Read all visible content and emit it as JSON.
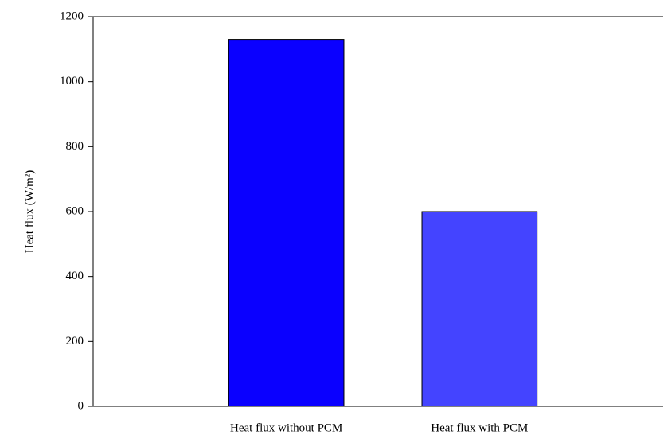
{
  "chart_data": {
    "type": "bar",
    "y_label": "Heat flux (W/m²)",
    "categories": [
      "Heat flux without PCM",
      "Heat flux with PCM"
    ],
    "values": [
      1130,
      600
    ],
    "colors": [
      "#0a00ff",
      "#4444ff"
    ],
    "ylim": [
      0,
      1200
    ],
    "yticks": [
      0,
      200,
      400,
      600,
      800,
      1000,
      1200
    ],
    "grid": false
  }
}
